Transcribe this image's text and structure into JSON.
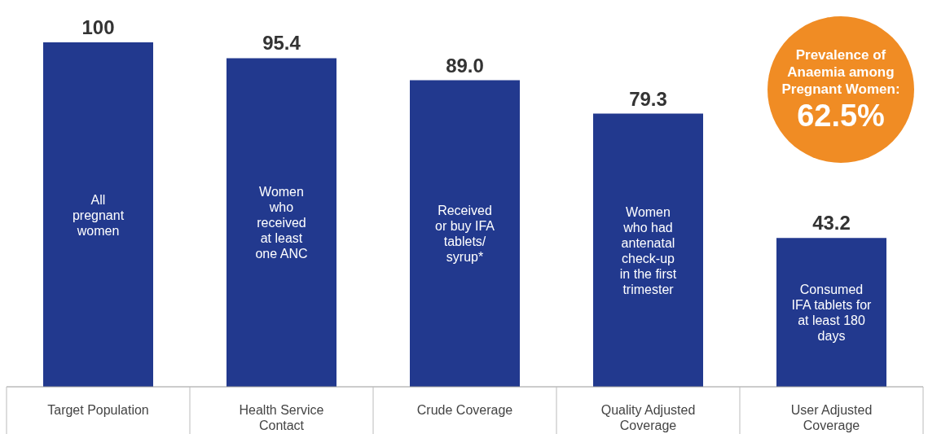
{
  "chart_data": {
    "type": "bar",
    "categories": [
      "Target Population",
      "Health Service Contact",
      "Crude Coverage",
      "Quality Adjusted Coverage",
      "User Adjusted Coverage"
    ],
    "values": [
      100,
      95.4,
      89.0,
      79.3,
      43.2
    ],
    "value_labels": [
      "100",
      "95.4",
      "89.0",
      "79.3",
      "43.2"
    ],
    "color": "#22398e",
    "annotations": [
      "All\npregnant\nwomen",
      "Women\nwho\nreceived\nat least\none ANC",
      "Received\nor buy IFA\ntablets/\nsyrup*",
      "Women\nwho had\nantenatal\ncheck-up\nin the first\ntrimester",
      "Consumed\nIFA tablets for\nat least 180\ndays",
      "Prevalence of\nAnaemia among\nPregnant Women:",
      "62.5%"
    ],
    "grid": false,
    "legend": false
  }
}
